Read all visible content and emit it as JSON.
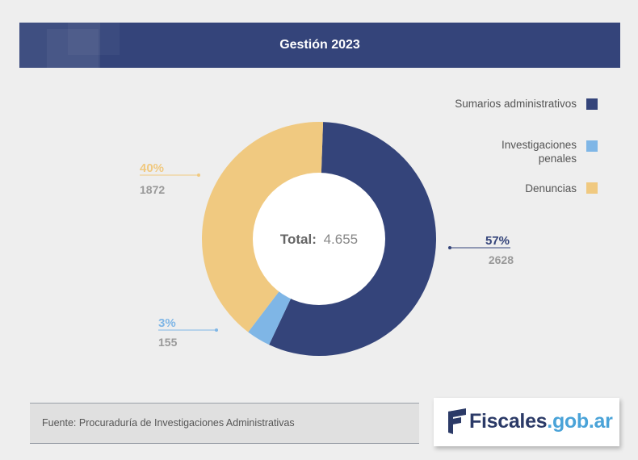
{
  "header": {
    "title": "Gestión 2023"
  },
  "colors": {
    "header_bg": "#34447a",
    "sumarios": "#34447a",
    "investigaciones": "#7fb6e6",
    "denuncias": "#f0c980",
    "count_gray": "#999999"
  },
  "legend": [
    {
      "label": "Sumarios administrativos",
      "color": "#34447a"
    },
    {
      "label": "Investigaciones penales",
      "color": "#7fb6e6"
    },
    {
      "label": "Denuncias",
      "color": "#f0c980"
    }
  ],
  "chart_data": {
    "type": "pie",
    "title": "Gestión 2023",
    "total_label": "Total:",
    "total_value": "4.655",
    "slices": [
      {
        "name": "Sumarios administrativos",
        "value": 2628,
        "percent_label": "57%",
        "count_label": "2628",
        "color": "#34447a"
      },
      {
        "name": "Investigaciones penales",
        "value": 155,
        "percent_label": "3%",
        "count_label": "155",
        "color": "#7fb6e6"
      },
      {
        "name": "Denuncias",
        "value": 1872,
        "percent_label": "40%",
        "count_label": "1872",
        "color": "#f0c980"
      }
    ]
  },
  "footer": {
    "source": "Fuente: Procuraduría de Investigaciones Administrativas"
  },
  "logo": {
    "part1": "Fiscales",
    "part2": ".gob.ar"
  }
}
